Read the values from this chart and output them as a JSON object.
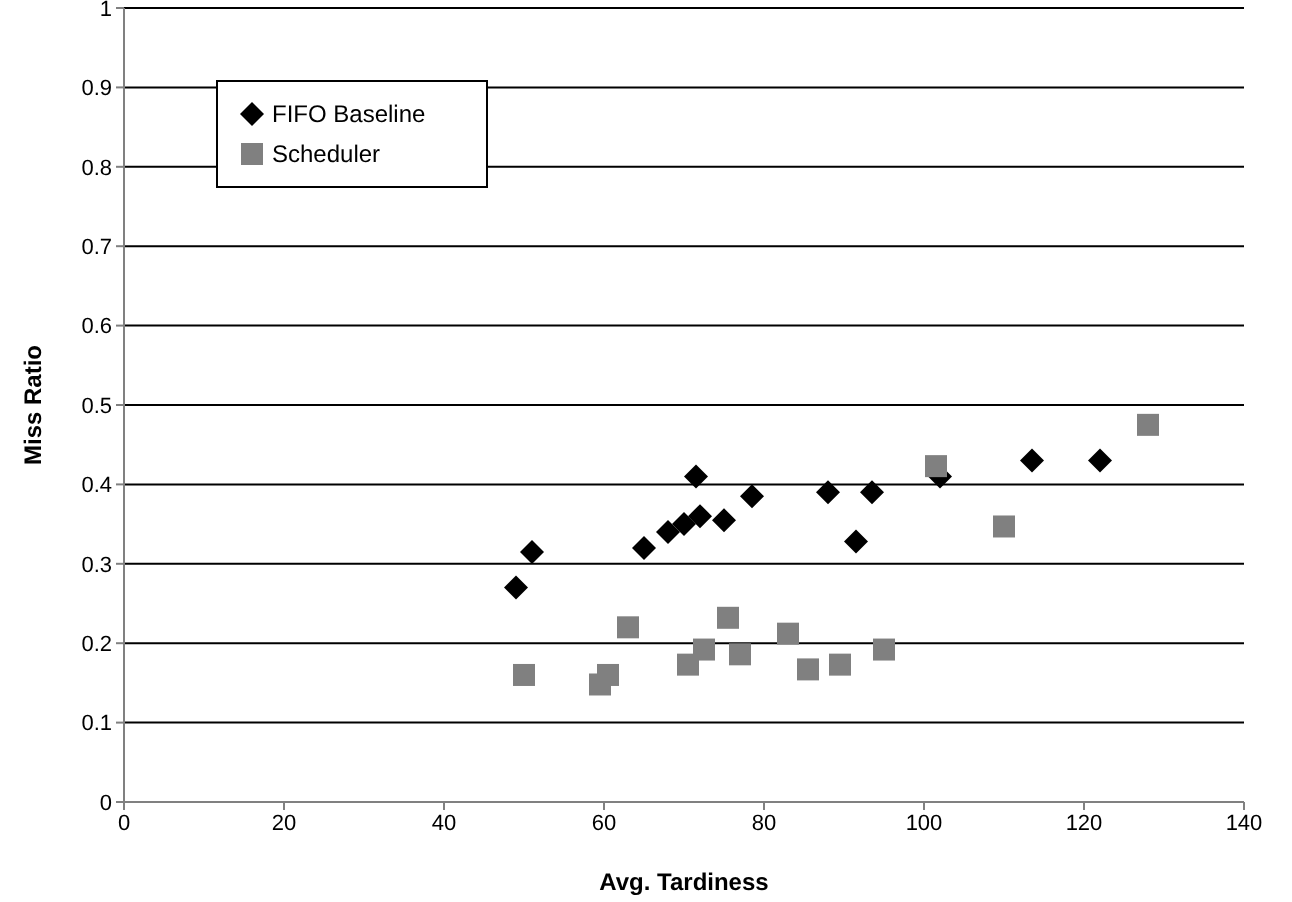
{
  "chart_data": {
    "type": "scatter",
    "xlabel": "Avg. Tardiness",
    "ylabel": "Miss Ratio",
    "xlim": [
      0,
      140
    ],
    "xticks": [
      0,
      20,
      40,
      60,
      80,
      100,
      120,
      140
    ],
    "ylim": [
      0,
      1
    ],
    "yticks": [
      0,
      0.1,
      0.2,
      0.3,
      0.4,
      0.5,
      0.6,
      0.7,
      0.8,
      0.9,
      1
    ],
    "grid": "y",
    "legend": "top left",
    "series": [
      {
        "name": "FIFO Baseline",
        "color": "#000000",
        "marker": "diamond",
        "x": [
          49,
          51,
          65,
          68,
          70,
          71.5,
          72,
          75,
          78.5,
          88,
          91.5,
          93.5,
          102,
          113.5,
          122
        ],
        "values": [
          0.27,
          0.315,
          0.32,
          0.34,
          0.35,
          0.41,
          0.36,
          0.355,
          0.385,
          0.39,
          0.328,
          0.39,
          0.41,
          0.43,
          0.43
        ]
      },
      {
        "name": "Scheduler",
        "color": "#808080",
        "marker": "square",
        "x": [
          50,
          59.5,
          60.5,
          63,
          70.5,
          72.5,
          75.5,
          77,
          83,
          85.5,
          89.5,
          95,
          101.5,
          110,
          128
        ],
        "values": [
          0.16,
          0.148,
          0.16,
          0.22,
          0.173,
          0.192,
          0.232,
          0.186,
          0.212,
          0.167,
          0.173,
          0.192,
          0.423,
          0.347,
          0.475
        ]
      }
    ]
  }
}
